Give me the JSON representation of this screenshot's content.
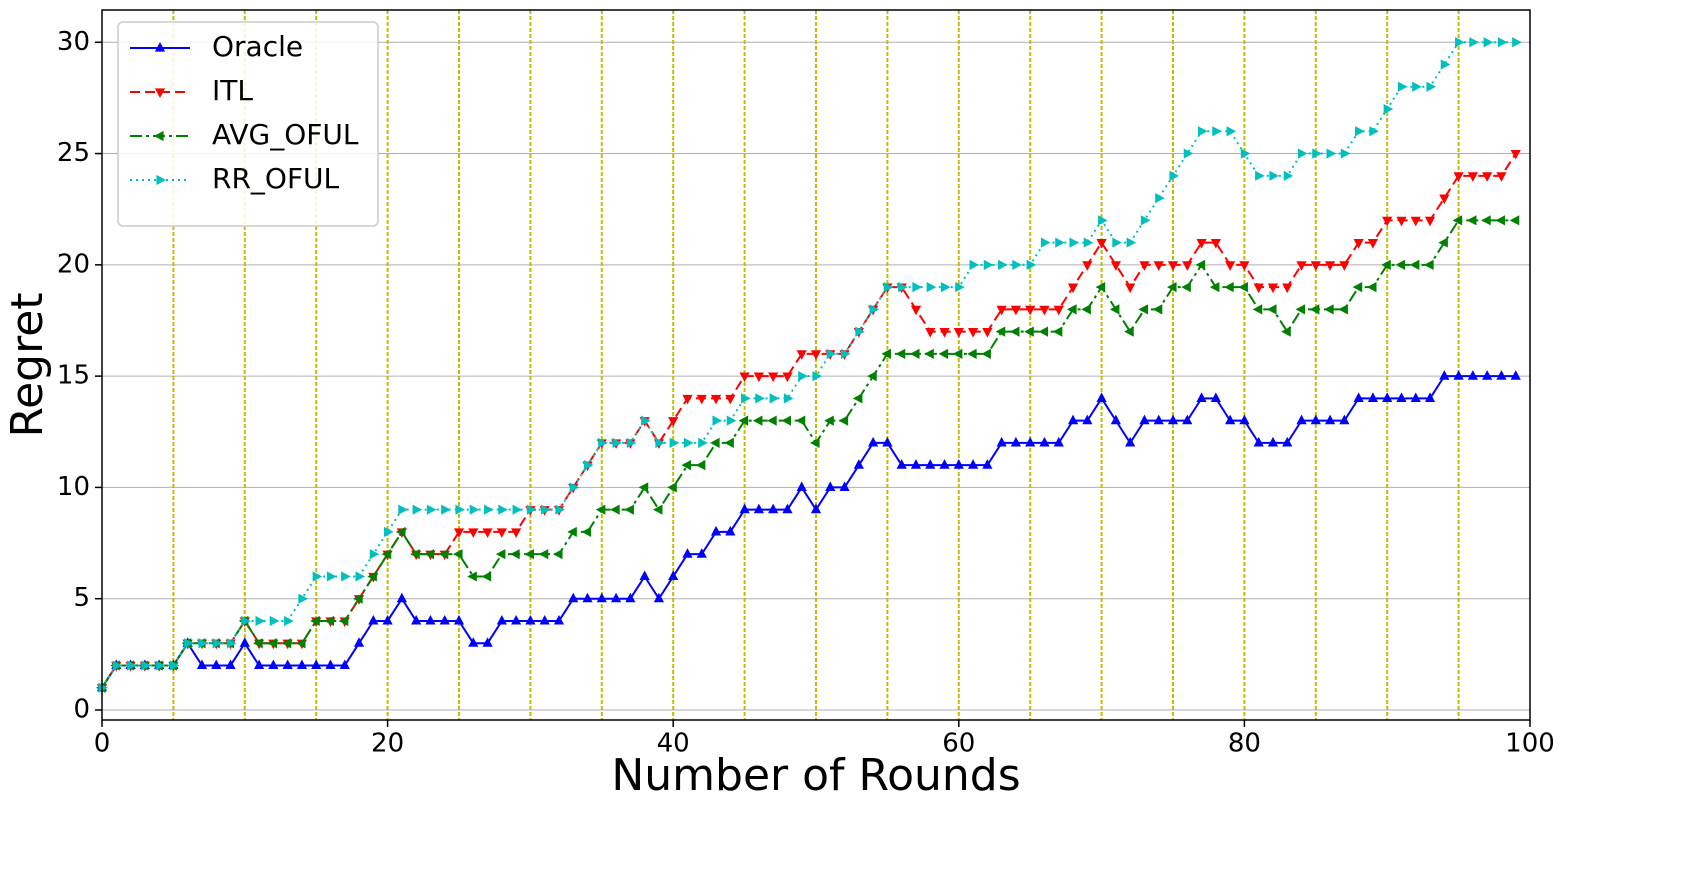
{
  "chart_data": {
    "type": "line",
    "x_label": "Number of Rounds",
    "y_label": "Regret",
    "x": [
      0,
      1,
      2,
      3,
      4,
      5,
      6,
      7,
      8,
      9,
      10,
      11,
      12,
      13,
      14,
      15,
      16,
      17,
      18,
      19,
      20,
      21,
      22,
      23,
      24,
      25,
      26,
      27,
      28,
      29,
      30,
      31,
      32,
      33,
      34,
      35,
      36,
      37,
      38,
      39,
      40,
      41,
      42,
      43,
      44,
      45,
      46,
      47,
      48,
      49,
      50,
      51,
      52,
      53,
      54,
      55,
      56,
      57,
      58,
      59,
      60,
      61,
      62,
      63,
      64,
      65,
      66,
      67,
      68,
      69,
      70,
      71,
      72,
      73,
      74,
      75,
      76,
      77,
      78,
      79,
      80,
      81,
      82,
      83,
      84,
      85,
      86,
      87,
      88,
      89,
      90,
      91,
      92,
      93,
      94,
      95,
      96,
      97,
      98,
      99
    ],
    "series": [
      {
        "name": "Oracle",
        "color": "#0000ff",
        "linestyle": "solid",
        "marker": "triangle-up",
        "values": [
          1,
          2,
          2,
          2,
          2,
          2,
          3,
          2,
          2,
          2,
          3,
          2,
          2,
          2,
          2,
          2,
          2,
          2,
          3,
          4,
          4,
          5,
          4,
          4,
          4,
          4,
          3,
          3,
          4,
          4,
          4,
          4,
          4,
          5,
          5,
          5,
          5,
          5,
          6,
          5,
          6,
          7,
          7,
          8,
          8,
          9,
          9,
          9,
          9,
          10,
          9,
          10,
          10,
          11,
          12,
          12,
          11,
          11,
          11,
          11,
          11,
          11,
          11,
          12,
          12,
          12,
          12,
          12,
          13,
          13,
          14,
          13,
          12,
          13,
          13,
          13,
          13,
          14,
          14,
          13,
          13,
          12,
          12,
          12,
          13,
          13,
          13,
          13,
          14,
          14,
          14,
          14,
          14,
          14,
          15,
          15,
          15,
          15,
          15,
          15
        ]
      },
      {
        "name": "ITL",
        "color": "#ff0000",
        "linestyle": "dashed",
        "marker": "triangle-down",
        "values": [
          1,
          2,
          2,
          2,
          2,
          2,
          3,
          3,
          3,
          3,
          4,
          3,
          3,
          3,
          3,
          4,
          4,
          4,
          5,
          6,
          7,
          8,
          7,
          7,
          7,
          8,
          8,
          8,
          8,
          8,
          9,
          9,
          9,
          10,
          11,
          12,
          12,
          12,
          13,
          12,
          13,
          14,
          14,
          14,
          14,
          15,
          15,
          15,
          15,
          16,
          16,
          16,
          16,
          17,
          18,
          19,
          19,
          18,
          17,
          17,
          17,
          17,
          17,
          18,
          18,
          18,
          18,
          18,
          19,
          20,
          21,
          20,
          19,
          20,
          20,
          20,
          20,
          21,
          21,
          20,
          20,
          19,
          19,
          19,
          20,
          20,
          20,
          20,
          21,
          21,
          22,
          22,
          22,
          22,
          23,
          24,
          24,
          24,
          24,
          25
        ]
      },
      {
        "name": "AVG_OFUL",
        "color": "#008000",
        "linestyle": "dashdot",
        "marker": "triangle-left",
        "values": [
          1,
          2,
          2,
          2,
          2,
          2,
          3,
          3,
          3,
          3,
          4,
          3,
          3,
          3,
          3,
          4,
          4,
          4,
          5,
          6,
          7,
          8,
          7,
          7,
          7,
          7,
          6,
          6,
          7,
          7,
          7,
          7,
          7,
          8,
          8,
          9,
          9,
          9,
          10,
          9,
          10,
          11,
          11,
          12,
          12,
          13,
          13,
          13,
          13,
          13,
          12,
          13,
          13,
          14,
          15,
          16,
          16,
          16,
          16,
          16,
          16,
          16,
          16,
          17,
          17,
          17,
          17,
          17,
          18,
          18,
          19,
          18,
          17,
          18,
          18,
          19,
          19,
          20,
          19,
          19,
          19,
          18,
          18,
          17,
          18,
          18,
          18,
          18,
          19,
          19,
          20,
          20,
          20,
          20,
          21,
          22,
          22,
          22,
          22,
          22
        ]
      },
      {
        "name": "RR_OFUL",
        "color": "#00bfbf",
        "linestyle": "dotted",
        "marker": "triangle-right",
        "values": [
          1,
          2,
          2,
          2,
          2,
          2,
          3,
          3,
          3,
          3,
          4,
          4,
          4,
          4,
          5,
          6,
          6,
          6,
          6,
          7,
          8,
          9,
          9,
          9,
          9,
          9,
          9,
          9,
          9,
          9,
          9,
          9,
          9,
          10,
          11,
          12,
          12,
          12,
          13,
          12,
          12,
          12,
          12,
          13,
          13,
          14,
          14,
          14,
          14,
          15,
          15,
          16,
          16,
          17,
          18,
          19,
          19,
          19,
          19,
          19,
          19,
          20,
          20,
          20,
          20,
          20,
          21,
          21,
          21,
          21,
          22,
          21,
          21,
          22,
          23,
          24,
          25,
          26,
          26,
          26,
          25,
          24,
          24,
          24,
          25,
          25,
          25,
          25,
          26,
          26,
          27,
          28,
          28,
          28,
          29,
          30,
          30,
          30,
          30,
          30
        ]
      }
    ],
    "xlim": [
      0,
      100
    ],
    "xticks": [
      0,
      20,
      40,
      60,
      80,
      100
    ],
    "ylim": [
      -0.45,
      31.45
    ],
    "yticks": [
      0,
      5,
      10,
      15,
      20,
      25,
      30
    ],
    "grid": "y",
    "legend": "upper-left",
    "vlines": [
      5,
      10,
      15,
      20,
      25,
      30,
      35,
      40,
      45,
      50,
      55,
      60,
      65,
      70,
      75,
      80,
      85,
      90,
      95
    ],
    "vline_color": "#bfbf00"
  }
}
